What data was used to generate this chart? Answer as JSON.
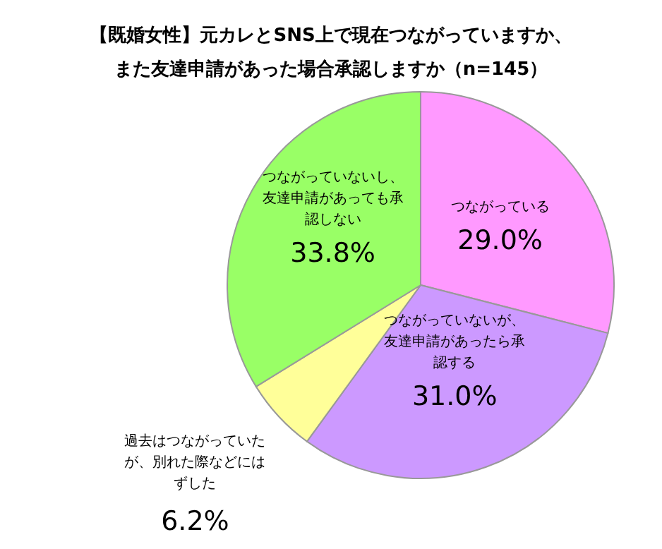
{
  "chart_data": {
    "type": "pie",
    "title": [
      "【既婚女性】元カレとSNS上で現在つながっていますか、",
      "また友達申請があった場合承認しますか（n=145）"
    ],
    "categories": [
      "つながっている",
      "つながっていないが、友達申請があったら承認する",
      "過去はつながっていたが、別れた際などにはずした",
      "つながっていないし、友達申請があっても承認しない"
    ],
    "values": [
      29.0,
      31.0,
      6.2,
      33.8
    ],
    "colors": [
      "#ff99ff",
      "#cc99ff",
      "#ffff99",
      "#99ff66"
    ],
    "value_labels": [
      "29.0%",
      "31.0%",
      "6.2%",
      "33.8%"
    ],
    "legend": false
  }
}
